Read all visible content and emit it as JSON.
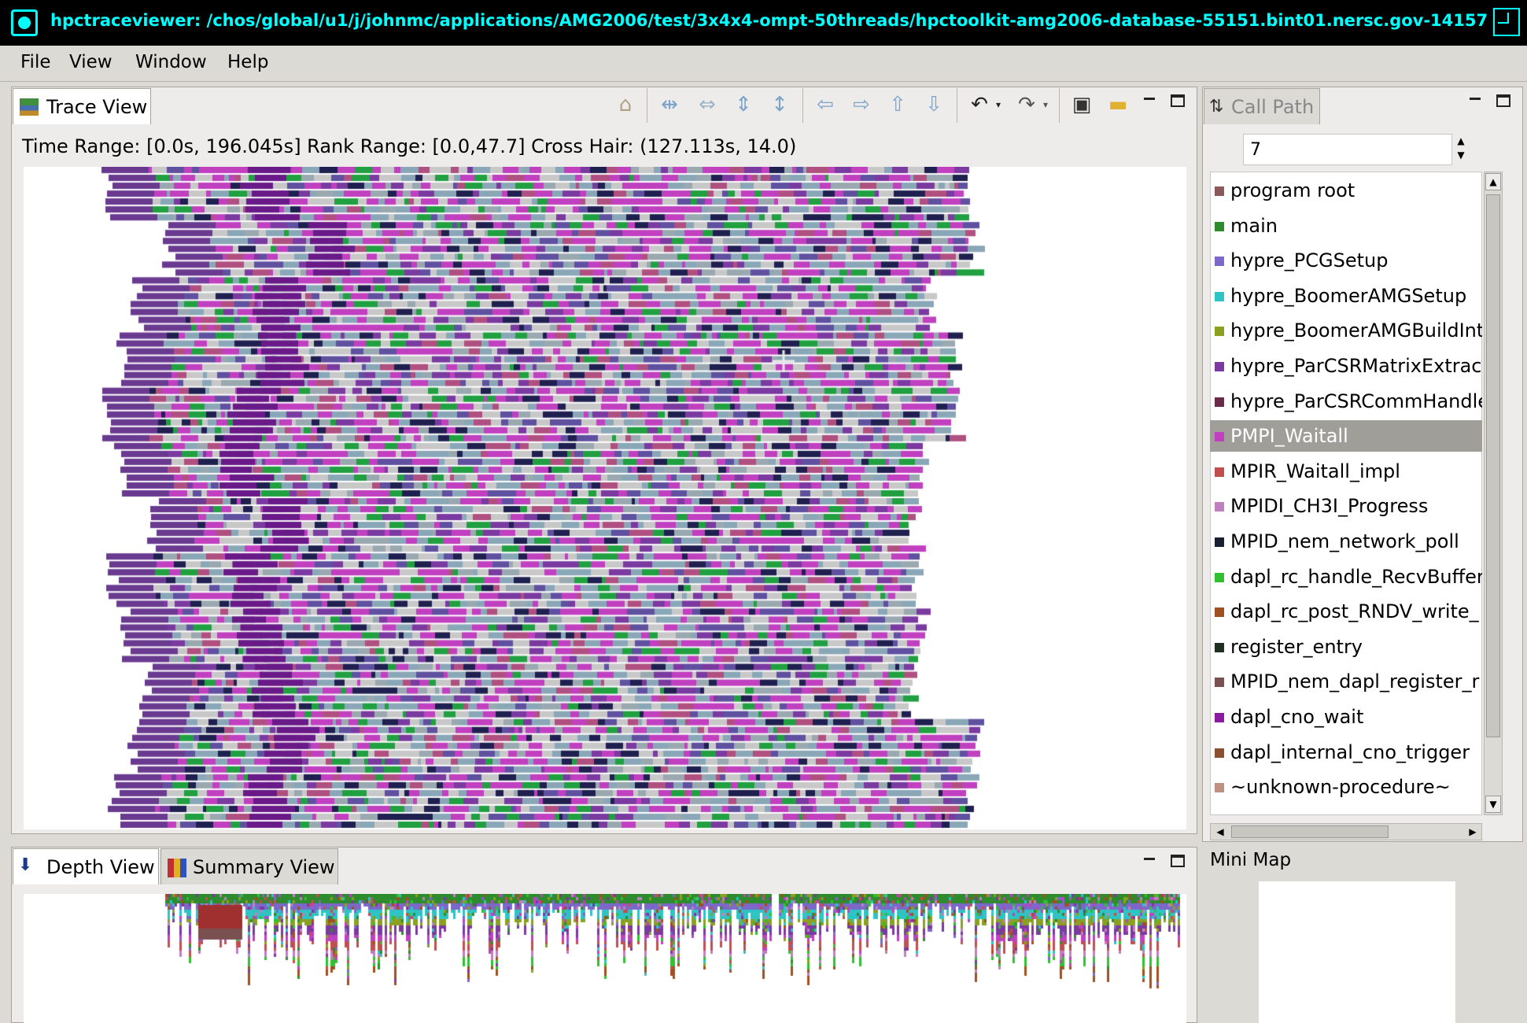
{
  "window": {
    "title": "hpctraceviewer: /chos/global/u1/j/johnmc/applications/AMG2006/test/3x4x4-ompt-50threads/hpctoolkit-amg2006-database-55151.bint01.nersc.gov-14157"
  },
  "menu": [
    "File",
    "View",
    "Window",
    "Help"
  ],
  "trace_view": {
    "tab_label": "Trace View",
    "info": "Time Range: [0.0s, 196.045s]  Rank Range: [0.0,47.7]  Cross Hair: (127.113s, 14.0)",
    "toolbar_icons": [
      "home-icon",
      "expand-horizontal-icon",
      "shrink-horizontal-icon",
      "expand-vertical-icon",
      "shrink-vertical-icon",
      "arrow-left-icon",
      "arrow-right-icon",
      "arrow-up-icon",
      "arrow-down-icon",
      "undo-icon",
      "redo-icon",
      "save-icon",
      "open-folder-icon"
    ]
  },
  "call_path": {
    "tab_label": "Call Path",
    "depth_value": "7",
    "selected_index": 7,
    "items": [
      {
        "label": "program root",
        "color": "#8a5a5a"
      },
      {
        "label": "main",
        "color": "#2e8b2e"
      },
      {
        "label": "hypre_PCGSetup",
        "color": "#7b68c8"
      },
      {
        "label": "hypre_BoomerAMGSetup",
        "color": "#2ec4c4"
      },
      {
        "label": "hypre_BoomerAMGBuildInt",
        "color": "#8aa020"
      },
      {
        "label": "hypre_ParCSRMatrixExtrac",
        "color": "#7a3aa0"
      },
      {
        "label": "hypre_ParCSRCommHandle",
        "color": "#6a2a4a"
      },
      {
        "label": "PMPI_Waitall",
        "color": "#c040c0"
      },
      {
        "label": "MPIR_Waitall_impl",
        "color": "#c05050"
      },
      {
        "label": "MPIDI_CH3I_Progress",
        "color": "#c080c0"
      },
      {
        "label": "MPID_nem_network_poll",
        "color": "#1a2030"
      },
      {
        "label": "dapl_rc_handle_RecvBuffer",
        "color": "#30c030"
      },
      {
        "label": "dapl_rc_post_RNDV_write_",
        "color": "#a05020"
      },
      {
        "label": "register_entry",
        "color": "#203020"
      },
      {
        "label": "MPID_nem_dapl_register_r",
        "color": "#7a5050"
      },
      {
        "label": "dapl_cno_wait",
        "color": "#8a1aa0"
      },
      {
        "label": "dapl_internal_cno_trigger",
        "color": "#8a5030"
      },
      {
        "label": "~unknown-procedure~",
        "color": "#c09080"
      }
    ]
  },
  "bottom": {
    "depth_tab": "Depth View",
    "summary_tab": "Summary View"
  },
  "minimap": {
    "label": "Mini Map"
  }
}
